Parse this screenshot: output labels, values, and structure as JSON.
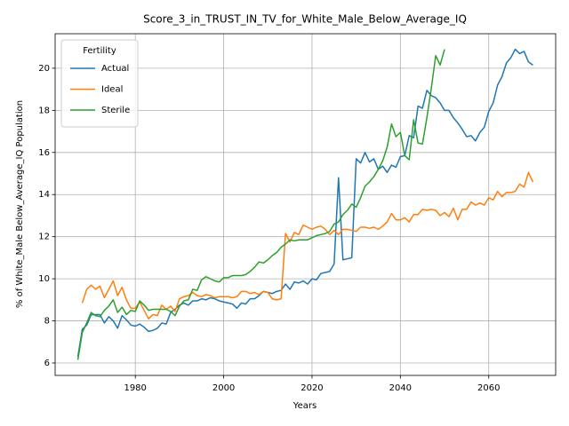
{
  "chart_data": {
    "type": "line",
    "title": "Score_3_in_TRUST_IN_TV_for_White_Male_Below_Average_IQ",
    "xlabel": "Years",
    "ylabel": "% of White_Male Below_Average_IQ Population",
    "legend_title": "Fertility",
    "legend_loc": "upper left",
    "grid": true,
    "xlim": [
      1961.85,
      2075.15
    ],
    "ylim": [
      5.41,
      21.64
    ],
    "xticks": [
      1980,
      2000,
      2020,
      2040,
      2060
    ],
    "yticks": [
      6,
      8,
      10,
      12,
      14,
      16,
      18,
      20
    ],
    "x": [
      1967,
      1968,
      1969,
      1970,
      1971,
      1972,
      1973,
      1974,
      1975,
      1976,
      1977,
      1978,
      1979,
      1980,
      1981,
      1982,
      1983,
      1984,
      1985,
      1986,
      1987,
      1988,
      1989,
      1990,
      1991,
      1992,
      1993,
      1994,
      1995,
      1996,
      1997,
      1998,
      1999,
      2000,
      2001,
      2002,
      2003,
      2004,
      2005,
      2006,
      2007,
      2008,
      2009,
      2010,
      2011,
      2012,
      2013,
      2014,
      2015,
      2016,
      2017,
      2018,
      2019,
      2020,
      2021,
      2022,
      2023,
      2024,
      2025,
      2026,
      2027,
      2028,
      2029,
      2030,
      2031,
      2032,
      2033,
      2034,
      2035,
      2036,
      2037,
      2038,
      2039,
      2040,
      2041,
      2042,
      2043,
      2044,
      2045,
      2046,
      2047,
      2048,
      2049,
      2050,
      2051,
      2052,
      2053,
      2054,
      2055,
      2056,
      2057,
      2058,
      2059,
      2060,
      2061,
      2062,
      2063,
      2064,
      2065,
      2066,
      2067,
      2068,
      2069,
      2070
    ],
    "series": [
      {
        "name": "Actual",
        "color": "#1f77b4",
        "values": [
          6.3,
          7.6,
          7.8,
          8.3,
          8.3,
          8.3,
          7.9,
          8.2,
          8.0,
          7.65,
          8.25,
          8.05,
          7.8,
          7.75,
          7.85,
          7.7,
          7.5,
          7.55,
          7.65,
          7.9,
          7.85,
          8.4,
          8.55,
          8.75,
          8.85,
          8.75,
          8.95,
          8.95,
          9.05,
          9.0,
          9.1,
          9.05,
          8.95,
          8.9,
          8.85,
          8.8,
          8.6,
          8.85,
          8.8,
          9.05,
          9.05,
          9.2,
          9.4,
          9.35,
          9.3,
          9.4,
          9.45,
          9.75,
          9.5,
          9.85,
          9.8,
          9.9,
          9.75,
          10.0,
          9.95,
          10.25,
          10.3,
          10.35,
          10.7,
          14.8,
          10.9,
          10.95,
          11.0,
          15.7,
          15.5,
          16.0,
          15.55,
          15.7,
          15.2,
          15.35,
          15.05,
          15.4,
          15.3,
          15.8,
          15.85,
          16.8,
          16.7,
          18.2,
          18.1,
          18.95,
          18.7,
          18.6,
          18.35,
          18.0,
          18.0,
          17.65,
          17.4,
          17.1,
          16.75,
          16.8,
          16.55,
          16.95,
          17.2,
          17.95,
          18.35,
          19.2,
          19.6,
          20.25,
          20.5,
          20.9,
          20.7,
          20.8,
          20.3,
          20.15
        ]
      },
      {
        "name": "Ideal",
        "color": "#ff7f0e",
        "values": [
          null,
          8.85,
          9.5,
          9.7,
          9.5,
          9.65,
          9.1,
          9.5,
          9.9,
          9.2,
          9.6,
          9.0,
          8.6,
          8.6,
          8.9,
          8.5,
          8.1,
          8.3,
          8.25,
          8.75,
          8.55,
          8.7,
          8.45,
          9.05,
          9.15,
          9.2,
          9.35,
          9.2,
          9.15,
          9.25,
          9.2,
          9.1,
          9.15,
          9.15,
          9.15,
          9.1,
          9.15,
          9.4,
          9.4,
          9.3,
          9.35,
          9.25,
          9.4,
          9.35,
          9.05,
          9.0,
          9.05,
          12.15,
          11.75,
          12.2,
          12.1,
          12.55,
          12.45,
          12.35,
          12.45,
          12.5,
          12.35,
          12.1,
          12.3,
          12.1,
          12.35,
          12.35,
          12.3,
          12.25,
          12.45,
          12.45,
          12.4,
          12.45,
          12.35,
          12.5,
          12.7,
          13.1,
          12.8,
          12.8,
          12.9,
          12.7,
          13.05,
          13.05,
          13.3,
          13.25,
          13.3,
          13.25,
          13.0,
          13.15,
          12.95,
          13.35,
          12.8,
          13.3,
          13.3,
          13.65,
          13.5,
          13.6,
          13.5,
          13.85,
          13.75,
          14.15,
          13.9,
          14.1,
          14.1,
          14.15,
          14.5,
          14.35,
          15.05,
          14.6
        ]
      },
      {
        "name": "Sterile",
        "color": "#2ca02c",
        "values": [
          6.15,
          7.45,
          7.9,
          8.4,
          8.25,
          8.2,
          8.5,
          8.7,
          9.0,
          8.4,
          8.65,
          8.3,
          8.5,
          8.45,
          8.95,
          8.75,
          8.5,
          8.55,
          8.55,
          8.55,
          8.55,
          8.45,
          8.25,
          8.7,
          8.95,
          9.0,
          9.5,
          9.45,
          9.95,
          10.1,
          10.0,
          9.9,
          9.85,
          10.05,
          10.05,
          10.15,
          10.15,
          10.15,
          10.2,
          10.35,
          10.55,
          10.8,
          10.75,
          10.9,
          11.1,
          11.25,
          11.5,
          11.65,
          11.85,
          11.8,
          11.85,
          11.85,
          11.85,
          11.95,
          12.05,
          12.1,
          12.15,
          12.25,
          12.6,
          12.7,
          13.05,
          13.25,
          13.55,
          13.4,
          13.85,
          14.4,
          14.6,
          14.85,
          15.2,
          15.6,
          16.25,
          17.35,
          16.75,
          16.95,
          15.85,
          15.65,
          17.55,
          16.45,
          16.4,
          17.65,
          19.05,
          20.6,
          20.15,
          20.9,
          null,
          null,
          null,
          null,
          null,
          null,
          null,
          null,
          null,
          null,
          null,
          null,
          null,
          null,
          null,
          null,
          null,
          null,
          null,
          null
        ]
      }
    ]
  }
}
